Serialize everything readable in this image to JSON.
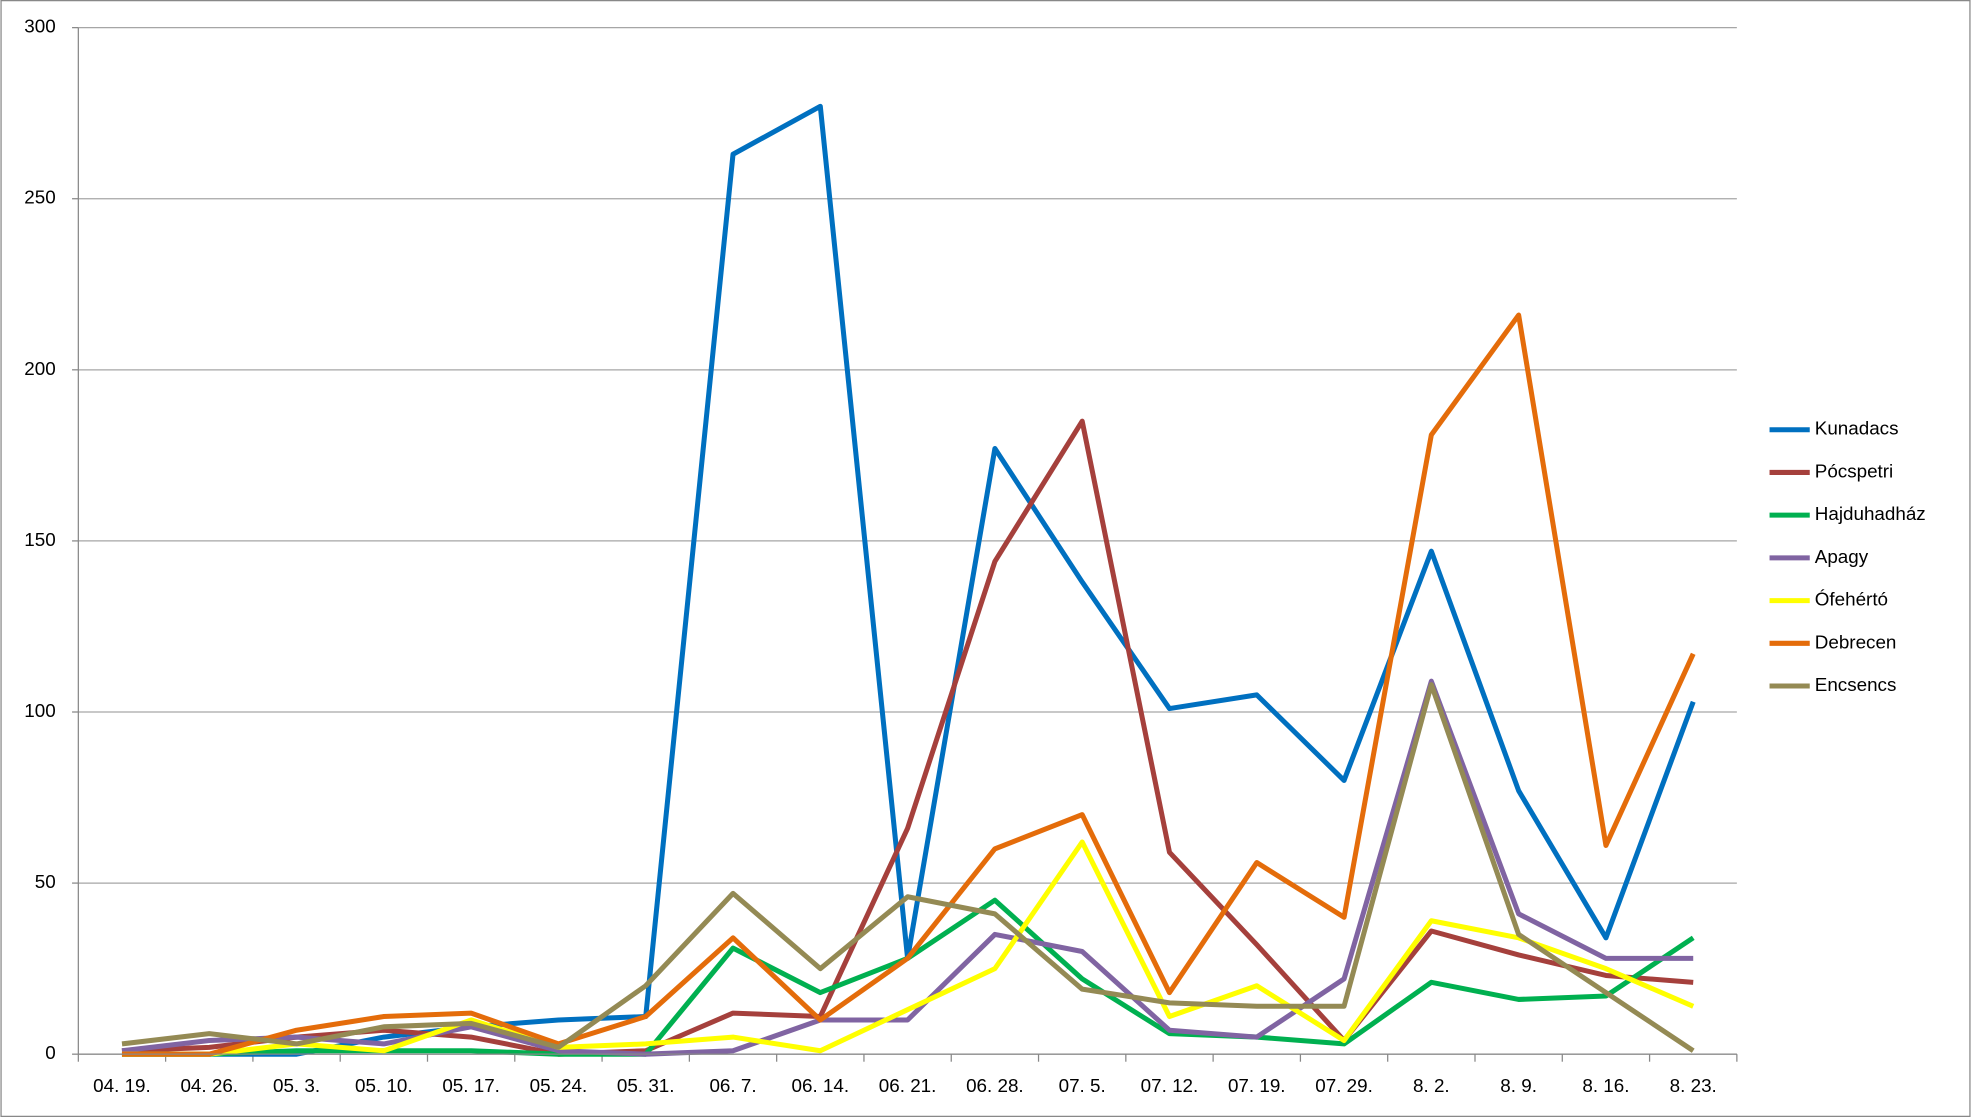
{
  "chart_data": {
    "type": "line",
    "categories": [
      "04. 19.",
      "04. 26.",
      "05. 3.",
      "05. 10.",
      "05. 17.",
      "05. 24.",
      "05. 31.",
      "06. 7.",
      "06. 14.",
      "06. 21.",
      "06. 28.",
      "07. 5.",
      "07. 12.",
      "07. 19.",
      "07. 29.",
      "8. 2.",
      "8. 9.",
      "8. 16.",
      "8. 23."
    ],
    "series": [
      {
        "name": "Kunadacs",
        "color": "#0070c0",
        "values": [
          0,
          0,
          0,
          5,
          8,
          10,
          11,
          263,
          277,
          28,
          177,
          138,
          101,
          105,
          80,
          147,
          77,
          34,
          103
        ]
      },
      {
        "name": "Pócspetri",
        "color": "#a5403c",
        "values": [
          1,
          2,
          5,
          7,
          5,
          0,
          1,
          12,
          11,
          66,
          144,
          185,
          59,
          32,
          4,
          36,
          29,
          23,
          21
        ]
      },
      {
        "name": "Hajduhadház",
        "color": "#00b050",
        "values": [
          0,
          0,
          1,
          1,
          1,
          0,
          0,
          31,
          18,
          28,
          45,
          22,
          6,
          5,
          3,
          21,
          16,
          17,
          34
        ]
      },
      {
        "name": "Apagy",
        "color": "#8064a2",
        "values": [
          1,
          4,
          5,
          3,
          8,
          1,
          0,
          1,
          10,
          10,
          35,
          30,
          7,
          5,
          22,
          109,
          41,
          28,
          28
        ]
      },
      {
        "name": "Ófehértó",
        "color": "#ffff00",
        "values": [
          0,
          0,
          3,
          1,
          10,
          2,
          3,
          5,
          1,
          13,
          25,
          62,
          11,
          20,
          4,
          39,
          34,
          25,
          14
        ]
      },
      {
        "name": "Debrecen",
        "color": "#e46c0a",
        "values": [
          0,
          0,
          7,
          11,
          12,
          3,
          11,
          34,
          10,
          28,
          60,
          70,
          18,
          56,
          40,
          181,
          216,
          61,
          117
        ]
      },
      {
        "name": "Encsencs",
        "color": "#948a54",
        "values": [
          3,
          6,
          3,
          8,
          9,
          2,
          20,
          47,
          25,
          46,
          41,
          19,
          15,
          14,
          14,
          108,
          35,
          18,
          1
        ]
      }
    ],
    "ylim": [
      0,
      300
    ],
    "yticks": [
      0,
      50,
      100,
      150,
      200,
      250,
      300
    ],
    "grid": true
  }
}
